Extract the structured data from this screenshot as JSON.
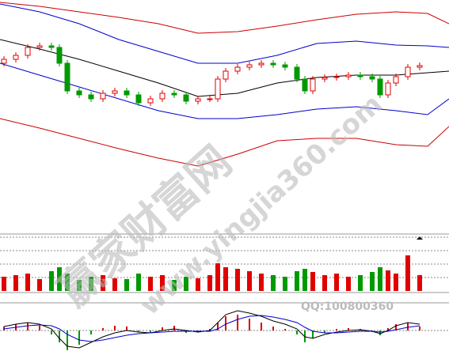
{
  "chart_data": [
    {
      "type": "candlestick",
      "x": [
        5,
        20,
        35,
        50,
        65,
        75,
        85,
        100,
        115,
        130,
        145,
        160,
        175,
        190,
        205,
        220,
        235,
        250,
        265,
        275,
        285,
        300,
        315,
        330,
        345,
        360,
        375,
        385,
        395,
        410,
        425,
        440,
        455,
        470,
        480,
        490,
        500,
        515,
        530
      ],
      "open": [
        210,
        215,
        220,
        230,
        232,
        230,
        210,
        175,
        170,
        165,
        172,
        175,
        170,
        160,
        165,
        172,
        170,
        162,
        165,
        165,
        190,
        200,
        205,
        208,
        210,
        208,
        205,
        190,
        175,
        190,
        192,
        193,
        195,
        193,
        190,
        170,
        185,
        193,
        205
      ],
      "close": [
        215,
        220,
        230,
        232,
        230,
        210,
        175,
        170,
        165,
        172,
        175,
        170,
        160,
        165,
        172,
        170,
        162,
        165,
        165,
        190,
        200,
        205,
        208,
        210,
        208,
        205,
        190,
        175,
        190,
        192,
        193,
        195,
        193,
        190,
        170,
        185,
        193,
        205,
        207
      ],
      "high": [
        219,
        224,
        234,
        236,
        236,
        234,
        214,
        179,
        174,
        176,
        179,
        179,
        174,
        169,
        176,
        176,
        174,
        169,
        169,
        194,
        204,
        209,
        212,
        214,
        214,
        212,
        209,
        194,
        194,
        196,
        197,
        199,
        199,
        197,
        194,
        189,
        197,
        209,
        211
      ],
      "low": [
        206,
        211,
        216,
        226,
        226,
        206,
        171,
        166,
        161,
        161,
        168,
        166,
        156,
        156,
        161,
        166,
        158,
        158,
        161,
        161,
        186,
        196,
        201,
        204,
        204,
        201,
        186,
        171,
        171,
        186,
        188,
        189,
        189,
        186,
        166,
        166,
        181,
        189,
        201
      ],
      "up_color": "#e00000",
      "down_color": "#009900",
      "xlim": [
        0,
        567
      ],
      "ylim": [
        0,
        290
      ],
      "bands": {
        "x": [
          0,
          50,
          100,
          150,
          200,
          250,
          300,
          350,
          400,
          450,
          500,
          540,
          567
        ],
        "series": [
          {
            "color": "#cc0000",
            "values": [
              287,
              282,
              275,
              268,
              260,
              248,
              250,
              257,
              265,
              272,
              275,
              273,
              260
            ]
          },
          {
            "color": "#0000cc",
            "values": [
              285,
              275,
              260,
              240,
              225,
              210,
              210,
              220,
              235,
              238,
              233,
              232,
              230
            ]
          },
          {
            "color": "#000000",
            "values": [
              240,
              228,
              215,
              200,
              185,
              168,
              172,
              185,
              192,
              195,
              195,
              198,
              200
            ]
          },
          {
            "color": "#0000cc",
            "values": [
              210,
              195,
              180,
              165,
              150,
              140,
              140,
              145,
              152,
              155,
              150,
              145,
              165
            ]
          },
          {
            "color": "#cc0000",
            "values": [
              140,
              128,
              115,
              102,
              90,
              80,
              95,
              112,
              115,
              115,
              107,
              105,
              130
            ]
          }
        ]
      }
    },
    {
      "type": "bar",
      "values": [
        18,
        20,
        22,
        15,
        25,
        30,
        22,
        14,
        18,
        20,
        16,
        15,
        22,
        18,
        20,
        14,
        18,
        16,
        20,
        35,
        30,
        28,
        25,
        22,
        20,
        18,
        25,
        28,
        24,
        20,
        22,
        18,
        20,
        24,
        30,
        26,
        22,
        45,
        20
      ],
      "ylim": [
        0,
        68
      ],
      "yticks": [
        17,
        34,
        51,
        68
      ],
      "grid": true
    },
    {
      "type": "macd",
      "histogram": [
        5,
        8,
        10,
        6,
        -5,
        -15,
        -25,
        -18,
        -5,
        3,
        6,
        5,
        -2,
        -3,
        4,
        6,
        -3,
        -2,
        2,
        10,
        18,
        20,
        15,
        10,
        5,
        2,
        -5,
        -15,
        -10,
        -3,
        2,
        3,
        2,
        -2,
        -6,
        3,
        8,
        10,
        5
      ],
      "series": [
        {
          "color": "#000000",
          "values": [
            5,
            8,
            10,
            8,
            2,
            -10,
            -20,
            -22,
            -15,
            -8,
            -3,
            0,
            -2,
            -3,
            0,
            2,
            0,
            -2,
            0,
            10,
            20,
            25,
            22,
            18,
            12,
            8,
            2,
            -8,
            -10,
            -5,
            -2,
            0,
            1,
            -1,
            -4,
            0,
            6,
            10,
            8
          ]
        },
        {
          "color": "#0000cc",
          "values": [
            2,
            4,
            6,
            7,
            6,
            2,
            -5,
            -12,
            -14,
            -12,
            -9,
            -6,
            -4,
            -3,
            -2,
            -1,
            -1,
            -1,
            -1,
            2,
            8,
            14,
            18,
            19,
            17,
            14,
            10,
            4,
            -1,
            -3,
            -3,
            -2,
            -1,
            -1,
            -2,
            -1,
            1,
            4,
            6
          ]
        }
      ],
      "ylim": [
        -30,
        30
      ],
      "yticks": [
        0
      ]
    }
  ],
  "watermark": {
    "site": "赢家财富网",
    "url": "www.yingjia360.com",
    "qq": "QQ:100800360"
  }
}
